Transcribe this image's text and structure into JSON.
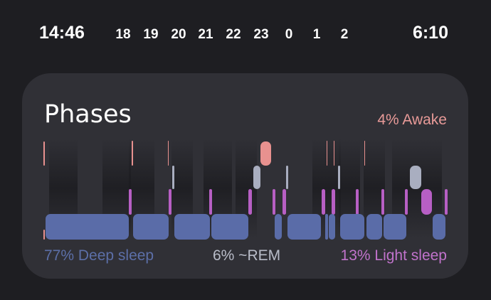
{
  "timeline": {
    "start_time": "14:46",
    "end_time": "6:10",
    "hours": [
      "18",
      "19",
      "20",
      "21",
      "22",
      "23",
      "0",
      "1",
      "2"
    ]
  },
  "card": {
    "title": "Phases",
    "awake_label": "4% Awake",
    "deep_label": "77% Deep sleep",
    "rem_label": "6% ~REM",
    "light_label": "13% Light sleep"
  },
  "colors": {
    "background": "#1e1e22",
    "card": "#303036",
    "deep": "#5a6ca8",
    "rem": "#a9aec0",
    "light": "#b75fc4",
    "awake": "#e8918f"
  },
  "chart_data": {
    "type": "bar",
    "levels": [
      "Awake",
      "~REM",
      "Light sleep",
      "Deep sleep"
    ],
    "shares_percent": {
      "Deep sleep": 77,
      "~REM": 6,
      "Light sleep": 13,
      "Awake": 4
    }
  }
}
